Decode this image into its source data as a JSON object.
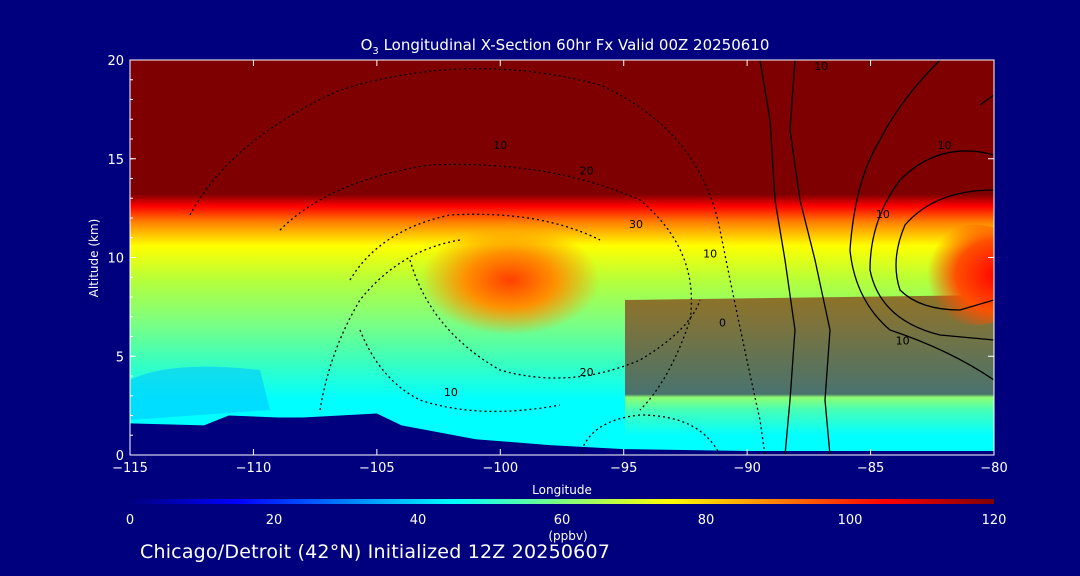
{
  "chart_data": {
    "type": "heatmap",
    "title_prefix": "O",
    "title_subscript": "3",
    "title_suffix": " Longitudinal X-Section 60hr  Fx Valid 00Z 20250610",
    "xlabel": "Longitude",
    "ylabel": "Altitude (km)",
    "xlim": [
      -115,
      -80
    ],
    "ylim": [
      0,
      20
    ],
    "x_ticks": [
      -115,
      -110,
      -105,
      -100,
      -95,
      -90,
      -85,
      -80
    ],
    "x_tick_labels": [
      "−115",
      "−110",
      "−105",
      "−100",
      "−95",
      "−90",
      "−85",
      "−80"
    ],
    "y_ticks": [
      0,
      5,
      10,
      15,
      20
    ],
    "y_tick_labels": [
      "0",
      "5",
      "10",
      "15",
      "20"
    ],
    "colorbar": {
      "ticks": [
        0,
        20,
        40,
        60,
        80,
        100,
        120
      ],
      "tick_labels": [
        "0",
        "20",
        "40",
        "60",
        "80",
        "100",
        "120"
      ],
      "label": "(ppbv)",
      "range": [
        0,
        120
      ],
      "colors": [
        "#00007f",
        "#0000ff",
        "#007fff",
        "#00ffff",
        "#7fff7f",
        "#ffff00",
        "#ff7f00",
        "#ff0000",
        "#7f0000"
      ]
    },
    "terrain_profile": {
      "x": [
        -115,
        -112,
        -111,
        -109,
        -108,
        -105,
        -104,
        -101,
        -98,
        -95,
        -90,
        -85,
        -80
      ],
      "y": [
        1.6,
        1.5,
        2.0,
        1.9,
        1.9,
        2.1,
        1.5,
        0.8,
        0.5,
        0.3,
        0.2,
        0.2,
        0.2
      ]
    },
    "contour_labels": [
      {
        "text": "10",
        "x": -100,
        "y": 15.5
      },
      {
        "text": "20",
        "x": -96.5,
        "y": 14.2
      },
      {
        "text": "30",
        "x": -94.5,
        "y": 11.5
      },
      {
        "text": "10",
        "x": -91.5,
        "y": 10.0
      },
      {
        "text": "20",
        "x": -96.5,
        "y": 4.0
      },
      {
        "text": "10",
        "x": -102,
        "y": 3.0
      },
      {
        "text": "0",
        "x": -91,
        "y": 6.5
      },
      {
        "text": "10",
        "x": -87,
        "y": 19.5
      },
      {
        "text": "10",
        "x": -82,
        "y": 15.5
      },
      {
        "text": "10",
        "x": -84.5,
        "y": 12.0
      },
      {
        "text": "10",
        "x": -83.7,
        "y": 5.6
      }
    ]
  },
  "footer": {
    "text": "Chicago/Detroit (42°N) Initialized 12Z 20250607"
  }
}
